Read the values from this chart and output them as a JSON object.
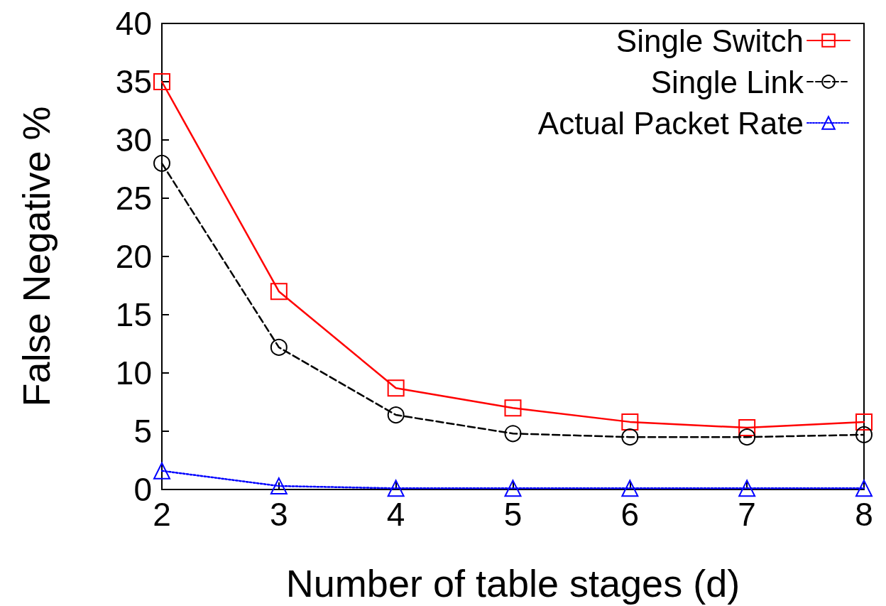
{
  "chart_data": {
    "type": "line",
    "xlabel": "Number of table stages (d)",
    "ylabel": "False Negative %",
    "x": [
      2,
      3,
      4,
      5,
      6,
      7,
      8
    ],
    "xlim": [
      2,
      8
    ],
    "xticks": [
      2,
      3,
      4,
      5,
      6,
      7,
      8
    ],
    "ylim": [
      0,
      40
    ],
    "yticks": [
      0,
      5,
      10,
      15,
      20,
      25,
      30,
      35,
      40
    ],
    "grid": false,
    "legend": "top right",
    "series": [
      {
        "name": "Single Switch",
        "color": "#ff0000",
        "marker": "square",
        "line_style": "solid",
        "values": [
          35.0,
          17.0,
          8.7,
          7.0,
          5.8,
          5.3,
          5.8
        ]
      },
      {
        "name": "Single Link",
        "color": "#000000",
        "marker": "circle",
        "line_style": "dashed",
        "values": [
          28.0,
          12.2,
          6.4,
          4.8,
          4.5,
          4.5,
          4.7
        ]
      },
      {
        "name": "Actual Packet Rate",
        "color": "#0000ff",
        "marker": "triangle",
        "line_style": "dotted",
        "values": [
          1.6,
          0.3,
          0.1,
          0.1,
          0.1,
          0.1,
          0.1
        ]
      }
    ]
  }
}
